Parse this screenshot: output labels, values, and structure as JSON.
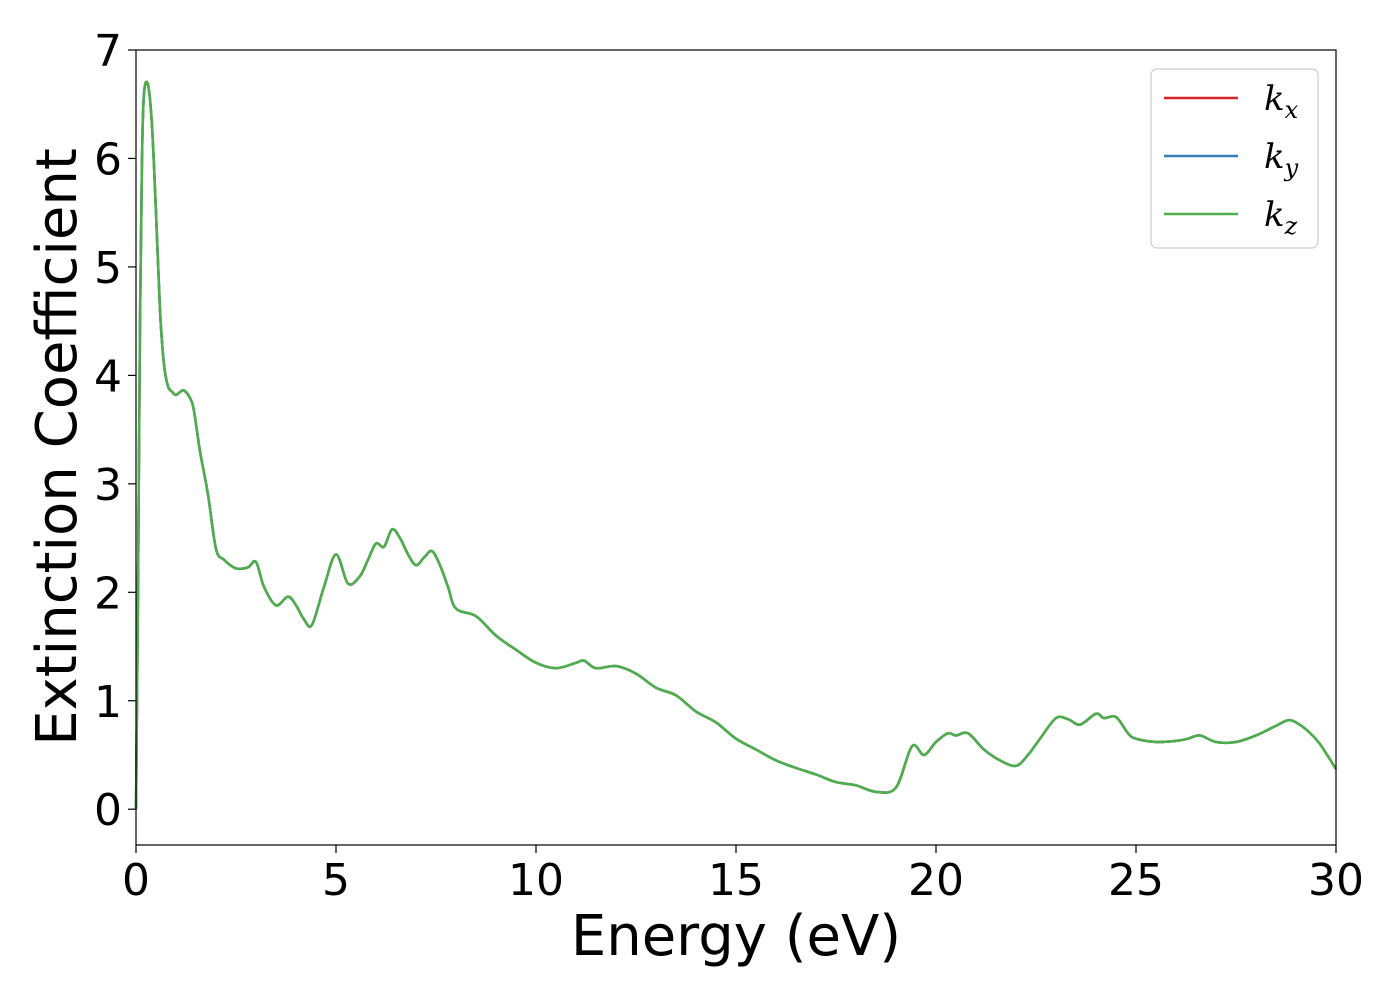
{
  "chart_data": {
    "type": "line",
    "title": "",
    "xlabel": "Energy (eV)",
    "ylabel": "Extinction Coefficient",
    "xlim": [
      0,
      30
    ],
    "ylim": [
      -0.33,
      7
    ],
    "xticks": [
      0,
      5,
      10,
      15,
      20,
      25,
      30
    ],
    "yticks": [
      0,
      1,
      2,
      3,
      4,
      5,
      6,
      7
    ],
    "grid": false,
    "legend_position": "top-right",
    "series": [
      {
        "name": "k_x",
        "label_main": "k",
        "label_sub": "x",
        "color": "#d62728",
        "x": [
          0,
          0.05,
          0.1,
          0.15,
          0.2,
          0.3,
          0.4,
          0.5,
          0.6,
          0.7,
          0.8,
          0.9,
          1.0,
          1.2,
          1.4,
          1.5,
          1.6,
          1.8,
          2.0,
          2.2,
          2.5,
          2.8,
          3.0,
          3.2,
          3.5,
          3.8,
          4.0,
          4.2,
          4.4,
          4.7,
          5.0,
          5.3,
          5.6,
          5.8,
          6.0,
          6.2,
          6.4,
          6.6,
          6.8,
          7.0,
          7.2,
          7.4,
          7.6,
          7.8,
          8.0,
          8.5,
          9.0,
          9.5,
          10.0,
          10.5,
          11.0,
          11.2,
          11.5,
          12.0,
          12.5,
          13.0,
          13.5,
          14.0,
          14.5,
          15.0,
          15.5,
          16.0,
          16.5,
          17.0,
          17.5,
          18.0,
          18.5,
          19.0,
          19.4,
          19.7,
          20.0,
          20.3,
          20.5,
          20.8,
          21.2,
          21.6,
          22.0,
          22.3,
          22.6,
          23.0,
          23.3,
          23.6,
          24.0,
          24.2,
          24.5,
          24.8,
          25.0,
          25.5,
          26.0,
          26.3,
          26.6,
          27.0,
          27.5,
          28.0,
          28.5,
          28.8,
          29.0,
          29.3,
          29.6,
          30.0
        ],
        "y": [
          0.0,
          2.0,
          4.5,
          6.0,
          6.6,
          6.68,
          6.3,
          5.5,
          4.6,
          4.1,
          3.9,
          3.85,
          3.82,
          3.86,
          3.75,
          3.55,
          3.3,
          2.9,
          2.4,
          2.3,
          2.22,
          2.23,
          2.28,
          2.05,
          1.88,
          1.96,
          1.88,
          1.75,
          1.7,
          2.05,
          2.35,
          2.08,
          2.15,
          2.3,
          2.45,
          2.42,
          2.58,
          2.5,
          2.35,
          2.25,
          2.32,
          2.38,
          2.25,
          2.05,
          1.85,
          1.78,
          1.6,
          1.47,
          1.35,
          1.3,
          1.35,
          1.37,
          1.3,
          1.32,
          1.25,
          1.12,
          1.05,
          0.9,
          0.8,
          0.65,
          0.55,
          0.45,
          0.38,
          0.32,
          0.25,
          0.22,
          0.16,
          0.2,
          0.58,
          0.5,
          0.62,
          0.7,
          0.68,
          0.7,
          0.55,
          0.45,
          0.4,
          0.5,
          0.65,
          0.84,
          0.83,
          0.78,
          0.88,
          0.84,
          0.85,
          0.7,
          0.65,
          0.62,
          0.63,
          0.65,
          0.68,
          0.62,
          0.62,
          0.68,
          0.77,
          0.82,
          0.8,
          0.72,
          0.6,
          0.37
        ]
      },
      {
        "name": "k_y",
        "label_main": "k",
        "label_sub": "y",
        "color": "#377eb8",
        "x": [
          0,
          0.05,
          0.1,
          0.15,
          0.2,
          0.3,
          0.4,
          0.5,
          0.6,
          0.7,
          0.8,
          0.9,
          1.0,
          1.2,
          1.4,
          1.5,
          1.6,
          1.8,
          2.0,
          2.2,
          2.5,
          2.8,
          3.0,
          3.2,
          3.5,
          3.8,
          4.0,
          4.2,
          4.4,
          4.7,
          5.0,
          5.3,
          5.6,
          5.8,
          6.0,
          6.2,
          6.4,
          6.6,
          6.8,
          7.0,
          7.2,
          7.4,
          7.6,
          7.8,
          8.0,
          8.5,
          9.0,
          9.5,
          10.0,
          10.5,
          11.0,
          11.2,
          11.5,
          12.0,
          12.5,
          13.0,
          13.5,
          14.0,
          14.5,
          15.0,
          15.5,
          16.0,
          16.5,
          17.0,
          17.5,
          18.0,
          18.5,
          19.0,
          19.4,
          19.7,
          20.0,
          20.3,
          20.5,
          20.8,
          21.2,
          21.6,
          22.0,
          22.3,
          22.6,
          23.0,
          23.3,
          23.6,
          24.0,
          24.2,
          24.5,
          24.8,
          25.0,
          25.5,
          26.0,
          26.3,
          26.6,
          27.0,
          27.5,
          28.0,
          28.5,
          28.8,
          29.0,
          29.3,
          29.6,
          30.0
        ],
        "y": [
          0.0,
          2.0,
          4.5,
          6.0,
          6.6,
          6.68,
          6.3,
          5.5,
          4.6,
          4.1,
          3.9,
          3.85,
          3.82,
          3.86,
          3.75,
          3.55,
          3.3,
          2.9,
          2.4,
          2.3,
          2.22,
          2.23,
          2.28,
          2.05,
          1.88,
          1.96,
          1.88,
          1.75,
          1.7,
          2.05,
          2.35,
          2.08,
          2.15,
          2.3,
          2.45,
          2.42,
          2.58,
          2.5,
          2.35,
          2.25,
          2.32,
          2.38,
          2.25,
          2.05,
          1.85,
          1.78,
          1.6,
          1.47,
          1.35,
          1.3,
          1.35,
          1.37,
          1.3,
          1.32,
          1.25,
          1.12,
          1.05,
          0.9,
          0.8,
          0.65,
          0.55,
          0.45,
          0.38,
          0.32,
          0.25,
          0.22,
          0.16,
          0.2,
          0.58,
          0.5,
          0.62,
          0.7,
          0.68,
          0.7,
          0.55,
          0.45,
          0.4,
          0.5,
          0.65,
          0.84,
          0.83,
          0.78,
          0.88,
          0.84,
          0.85,
          0.7,
          0.65,
          0.62,
          0.63,
          0.65,
          0.68,
          0.62,
          0.62,
          0.68,
          0.77,
          0.82,
          0.8,
          0.72,
          0.6,
          0.37
        ]
      },
      {
        "name": "k_z",
        "label_main": "k",
        "label_sub": "z",
        "color": "#4daf4a",
        "x": [
          0,
          0.05,
          0.1,
          0.15,
          0.2,
          0.3,
          0.4,
          0.5,
          0.6,
          0.7,
          0.8,
          0.9,
          1.0,
          1.2,
          1.4,
          1.5,
          1.6,
          1.8,
          2.0,
          2.2,
          2.5,
          2.8,
          3.0,
          3.2,
          3.5,
          3.8,
          4.0,
          4.2,
          4.4,
          4.7,
          5.0,
          5.3,
          5.6,
          5.8,
          6.0,
          6.2,
          6.4,
          6.6,
          6.8,
          7.0,
          7.2,
          7.4,
          7.6,
          7.8,
          8.0,
          8.5,
          9.0,
          9.5,
          10.0,
          10.5,
          11.0,
          11.2,
          11.5,
          12.0,
          12.5,
          13.0,
          13.5,
          14.0,
          14.5,
          15.0,
          15.5,
          16.0,
          16.5,
          17.0,
          17.5,
          18.0,
          18.5,
          19.0,
          19.4,
          19.7,
          20.0,
          20.3,
          20.5,
          20.8,
          21.2,
          21.6,
          22.0,
          22.3,
          22.6,
          23.0,
          23.3,
          23.6,
          24.0,
          24.2,
          24.5,
          24.8,
          25.0,
          25.5,
          26.0,
          26.3,
          26.6,
          27.0,
          27.5,
          28.0,
          28.5,
          28.8,
          29.0,
          29.3,
          29.6,
          30.0
        ],
        "y": [
          0.0,
          2.0,
          4.5,
          6.0,
          6.6,
          6.68,
          6.3,
          5.5,
          4.6,
          4.1,
          3.9,
          3.85,
          3.82,
          3.86,
          3.75,
          3.55,
          3.3,
          2.9,
          2.4,
          2.3,
          2.22,
          2.23,
          2.28,
          2.05,
          1.88,
          1.96,
          1.88,
          1.75,
          1.7,
          2.05,
          2.35,
          2.08,
          2.15,
          2.3,
          2.45,
          2.42,
          2.58,
          2.5,
          2.35,
          2.25,
          2.32,
          2.38,
          2.25,
          2.05,
          1.85,
          1.78,
          1.6,
          1.47,
          1.35,
          1.3,
          1.35,
          1.37,
          1.3,
          1.32,
          1.25,
          1.12,
          1.05,
          0.9,
          0.8,
          0.65,
          0.55,
          0.45,
          0.38,
          0.32,
          0.25,
          0.22,
          0.16,
          0.2,
          0.58,
          0.5,
          0.62,
          0.7,
          0.68,
          0.7,
          0.55,
          0.45,
          0.4,
          0.5,
          0.65,
          0.84,
          0.83,
          0.78,
          0.88,
          0.84,
          0.85,
          0.7,
          0.65,
          0.62,
          0.63,
          0.65,
          0.68,
          0.62,
          0.62,
          0.68,
          0.77,
          0.82,
          0.8,
          0.72,
          0.6,
          0.37
        ]
      }
    ]
  }
}
